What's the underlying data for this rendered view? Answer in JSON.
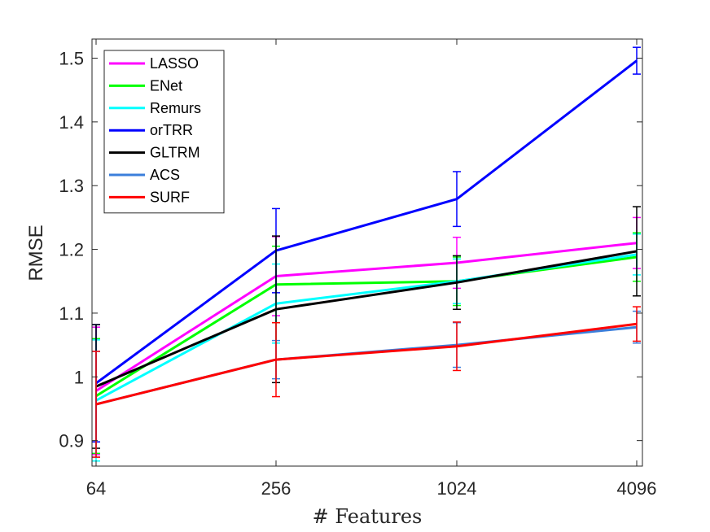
{
  "chart_data": {
    "type": "line",
    "title": "",
    "xlabel": "# Features",
    "ylabel": "RMSE",
    "categories": [
      "64",
      "256",
      "1024",
      "4096"
    ],
    "ylim": [
      0.86,
      1.53
    ],
    "yticks": [
      0.9,
      1,
      1.1,
      1.2,
      1.3,
      1.4,
      1.5
    ],
    "ytick_labels": [
      "0.9",
      "1",
      "1.1",
      "1.2",
      "1.3",
      "1.4",
      "1.5"
    ],
    "grid": false,
    "legend_position": "top-left",
    "series": [
      {
        "name": "LASSO",
        "color": "#ff00ff",
        "values": [
          0.978,
          1.158,
          1.179,
          1.21
        ],
        "errors": [
          0.1,
          0.062,
          0.04,
          0.04
        ]
      },
      {
        "name": "ENet",
        "color": "#00ff00",
        "values": [
          0.97,
          1.145,
          1.15,
          1.188
        ],
        "errors": [
          0.09,
          0.06,
          0.038,
          0.038
        ]
      },
      {
        "name": "Remurs",
        "color": "#00ffff",
        "values": [
          0.963,
          1.115,
          1.15,
          1.192
        ],
        "errors": [
          0.095,
          0.062,
          0.035,
          0.032
        ]
      },
      {
        "name": "orTRR",
        "color": "#0000ff",
        "values": [
          0.99,
          1.198,
          1.279,
          1.496
        ],
        "errors": [
          0.092,
          0.066,
          0.043,
          0.021
        ]
      },
      {
        "name": "GLTRM",
        "color": "#000000",
        "values": [
          0.985,
          1.106,
          1.148,
          1.197
        ],
        "errors": [
          0.097,
          0.115,
          0.042,
          0.07
        ]
      },
      {
        "name": "ACS",
        "color": "#3b7fdb",
        "values": [
          0.957,
          1.027,
          1.05,
          1.078
        ],
        "errors": [
          0.083,
          0.03,
          0.035,
          0.025
        ]
      },
      {
        "name": "SURF",
        "color": "#ff0000",
        "values": [
          0.957,
          1.027,
          1.048,
          1.083
        ],
        "errors": [
          0.083,
          0.058,
          0.038,
          0.027
        ]
      }
    ]
  }
}
